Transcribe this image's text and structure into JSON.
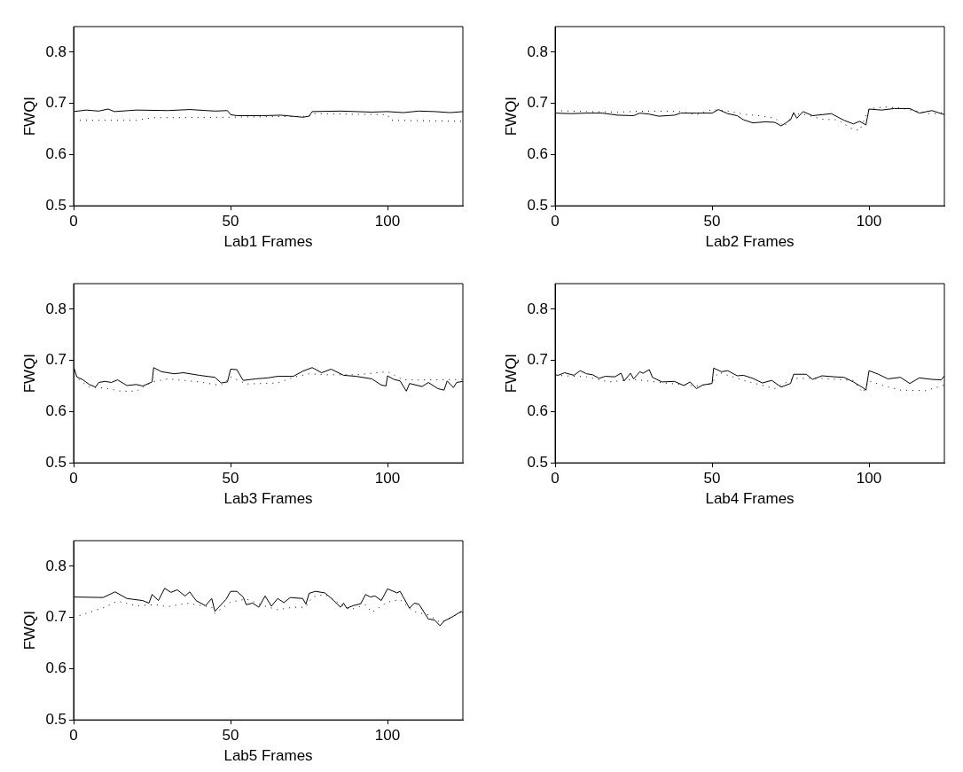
{
  "chart_data": [
    {
      "type": "line",
      "xlabel": "Lab1 Frames",
      "ylabel": "FWQI",
      "xlim": [
        0,
        124
      ],
      "xticks": [
        0,
        50,
        100
      ],
      "ylim": [
        0.5,
        0.85
      ],
      "yticks": [
        0.5,
        0.6,
        0.7,
        0.8
      ],
      "grid": false,
      "legend": false,
      "marker": "none",
      "series": [
        {
          "color": "#000000",
          "line_style": "solid",
          "x": [
            0,
            4,
            8,
            11,
            13,
            20,
            30,
            37,
            45,
            49,
            50,
            52,
            60,
            66,
            73,
            75,
            76,
            85,
            95,
            100,
            105,
            110,
            115,
            120,
            124
          ],
          "values": [
            0.684,
            0.687,
            0.685,
            0.689,
            0.684,
            0.687,
            0.686,
            0.688,
            0.685,
            0.686,
            0.678,
            0.676,
            0.676,
            0.677,
            0.673,
            0.675,
            0.684,
            0.685,
            0.683,
            0.684,
            0.682,
            0.685,
            0.684,
            0.682,
            0.684
          ]
        },
        {
          "color": "#000000",
          "line_style": "dotted",
          "x": [
            0,
            20,
            25,
            50,
            75,
            76,
            100,
            101,
            124
          ],
          "values": [
            0.667,
            0.667,
            0.672,
            0.673,
            0.675,
            0.68,
            0.678,
            0.667,
            0.665
          ]
        }
      ]
    },
    {
      "type": "line",
      "xlabel": "Lab2 Frames",
      "ylabel": "FWQI",
      "xlim": [
        0,
        124
      ],
      "xticks": [
        0,
        50,
        100
      ],
      "ylim": [
        0.5,
        0.85
      ],
      "yticks": [
        0.5,
        0.6,
        0.7,
        0.8
      ],
      "grid": false,
      "legend": false,
      "marker": "none",
      "series": [
        {
          "color": "#000000",
          "line_style": "solid",
          "x": [
            0,
            5,
            10,
            15,
            20,
            25,
            27,
            30,
            33,
            38,
            40,
            45,
            50,
            52,
            55,
            58,
            60,
            63,
            67,
            70,
            72,
            75,
            76,
            77,
            79,
            82,
            88,
            92,
            95,
            97,
            99,
            100,
            104,
            108,
            113,
            116,
            120,
            124
          ],
          "values": [
            0.681,
            0.68,
            0.681,
            0.681,
            0.677,
            0.676,
            0.681,
            0.679,
            0.675,
            0.677,
            0.681,
            0.681,
            0.681,
            0.688,
            0.68,
            0.676,
            0.668,
            0.662,
            0.664,
            0.663,
            0.656,
            0.668,
            0.682,
            0.671,
            0.684,
            0.676,
            0.68,
            0.667,
            0.66,
            0.665,
            0.658,
            0.689,
            0.687,
            0.69,
            0.69,
            0.681,
            0.686,
            0.678
          ]
        },
        {
          "color": "#000000",
          "line_style": "dotted",
          "x": [
            0,
            10,
            20,
            30,
            40,
            45,
            50,
            55,
            60,
            65,
            70,
            73,
            76,
            80,
            85,
            90,
            94,
            97,
            100,
            105,
            110,
            115,
            120,
            124
          ],
          "values": [
            0.686,
            0.684,
            0.683,
            0.685,
            0.684,
            0.678,
            0.688,
            0.685,
            0.679,
            0.676,
            0.671,
            0.655,
            0.68,
            0.678,
            0.669,
            0.668,
            0.652,
            0.647,
            0.69,
            0.693,
            0.691,
            0.685,
            0.679,
            0.683
          ]
        }
      ]
    },
    {
      "type": "line",
      "xlabel": "Lab3 Frames",
      "ylabel": "FWQI",
      "xlim": [
        0,
        124
      ],
      "xticks": [
        0,
        50,
        100
      ],
      "ylim": [
        0.5,
        0.85
      ],
      "yticks": [
        0.5,
        0.6,
        0.7,
        0.8
      ],
      "grid": false,
      "legend": false,
      "marker": "none",
      "series": [
        {
          "color": "#000000",
          "line_style": "solid",
          "x": [
            0,
            1,
            3,
            5,
            7,
            8,
            10,
            12,
            14,
            17,
            20,
            22,
            25,
            25.5,
            28,
            32,
            35,
            40,
            45,
            47,
            49,
            50,
            52,
            54,
            58,
            62,
            65,
            70,
            73,
            76,
            79,
            82,
            86,
            90,
            95,
            98,
            99.5,
            100,
            102,
            104,
            106,
            107,
            111,
            113,
            116,
            118,
            119,
            121,
            122,
            124
          ],
          "values": [
            0.688,
            0.668,
            0.662,
            0.653,
            0.648,
            0.657,
            0.659,
            0.657,
            0.662,
            0.651,
            0.653,
            0.65,
            0.658,
            0.686,
            0.678,
            0.674,
            0.676,
            0.671,
            0.667,
            0.656,
            0.658,
            0.683,
            0.682,
            0.661,
            0.664,
            0.666,
            0.669,
            0.669,
            0.679,
            0.686,
            0.676,
            0.683,
            0.671,
            0.669,
            0.664,
            0.652,
            0.65,
            0.67,
            0.663,
            0.66,
            0.64,
            0.655,
            0.649,
            0.657,
            0.645,
            0.642,
            0.66,
            0.647,
            0.657,
            0.659
          ]
        },
        {
          "color": "#000000",
          "line_style": "dotted",
          "x": [
            0,
            5,
            10,
            15,
            20,
            25,
            30,
            40,
            47,
            50,
            55,
            65,
            70,
            75,
            80,
            90,
            100,
            105,
            115,
            124
          ],
          "values": [
            0.67,
            0.648,
            0.646,
            0.64,
            0.64,
            0.658,
            0.664,
            0.658,
            0.651,
            0.668,
            0.654,
            0.656,
            0.667,
            0.674,
            0.672,
            0.672,
            0.678,
            0.662,
            0.662,
            0.663
          ]
        }
      ]
    },
    {
      "type": "line",
      "xlabel": "Lab4 Frames",
      "ylabel": "FWQI",
      "xlim": [
        0,
        124
      ],
      "xticks": [
        0,
        50,
        100
      ],
      "ylim": [
        0.5,
        0.85
      ],
      "yticks": [
        0.5,
        0.6,
        0.7,
        0.8
      ],
      "grid": false,
      "legend": false,
      "marker": "none",
      "series": [
        {
          "color": "#000000",
          "line_style": "solid",
          "x": [
            0,
            1,
            3,
            6,
            8,
            10,
            12,
            14,
            16,
            19,
            21,
            22,
            24,
            25,
            27,
            28,
            30,
            31,
            34,
            38,
            41,
            43,
            45,
            47,
            50,
            50.5,
            53,
            55,
            58,
            60,
            63,
            66,
            69,
            72,
            75,
            76,
            80,
            82,
            85,
            89,
            92,
            95,
            98,
            99,
            100,
            103,
            106,
            110,
            113,
            116,
            120,
            123,
            124
          ],
          "values": [
            0.672,
            0.671,
            0.676,
            0.671,
            0.68,
            0.674,
            0.672,
            0.665,
            0.669,
            0.668,
            0.675,
            0.66,
            0.675,
            0.664,
            0.678,
            0.675,
            0.682,
            0.667,
            0.658,
            0.659,
            0.651,
            0.658,
            0.645,
            0.652,
            0.655,
            0.685,
            0.678,
            0.68,
            0.67,
            0.671,
            0.665,
            0.656,
            0.661,
            0.648,
            0.655,
            0.673,
            0.673,
            0.663,
            0.67,
            0.668,
            0.667,
            0.658,
            0.647,
            0.642,
            0.68,
            0.673,
            0.664,
            0.667,
            0.655,
            0.666,
            0.663,
            0.662,
            0.67
          ]
        },
        {
          "color": "#000000",
          "line_style": "dotted",
          "x": [
            0,
            10,
            17,
            25,
            35,
            45,
            50,
            52,
            60,
            70,
            76,
            85,
            95,
            98,
            100,
            105,
            110,
            118,
            124
          ],
          "values": [
            0.671,
            0.668,
            0.658,
            0.663,
            0.656,
            0.65,
            0.655,
            0.677,
            0.661,
            0.645,
            0.665,
            0.665,
            0.661,
            0.637,
            0.66,
            0.65,
            0.642,
            0.641,
            0.652
          ]
        }
      ]
    },
    {
      "type": "line",
      "xlabel": "Lab5 Frames",
      "ylabel": "FWQI",
      "xlim": [
        0,
        124
      ],
      "xticks": [
        0,
        50,
        100
      ],
      "ylim": [
        0.5,
        0.85
      ],
      "yticks": [
        0.5,
        0.6,
        0.7,
        0.8
      ],
      "grid": false,
      "legend": false,
      "marker": "none",
      "series": [
        {
          "color": "#000000",
          "line_style": "solid",
          "x": [
            0,
            9.4,
            13.2,
            17,
            22,
            24,
            25,
            27,
            29,
            31,
            33,
            35.5,
            37,
            39,
            42,
            44,
            45,
            48.5,
            50,
            52,
            54,
            55,
            57,
            59,
            61,
            63,
            65,
            67,
            69,
            73,
            74,
            75,
            77,
            80,
            82,
            85,
            86,
            87,
            89,
            91.5,
            93,
            94.5,
            96,
            98,
            100,
            103,
            104,
            107,
            108.5,
            110,
            113,
            115,
            116.7,
            118,
            120.6,
            123.5,
            124
          ],
          "values": [
            0.74,
            0.739,
            0.75,
            0.737,
            0.733,
            0.728,
            0.745,
            0.733,
            0.757,
            0.749,
            0.754,
            0.742,
            0.75,
            0.733,
            0.723,
            0.737,
            0.712,
            0.735,
            0.751,
            0.751,
            0.74,
            0.725,
            0.728,
            0.72,
            0.742,
            0.722,
            0.737,
            0.729,
            0.739,
            0.737,
            0.726,
            0.747,
            0.751,
            0.748,
            0.738,
            0.72,
            0.728,
            0.718,
            0.723,
            0.727,
            0.745,
            0.74,
            0.742,
            0.733,
            0.756,
            0.748,
            0.751,
            0.718,
            0.728,
            0.726,
            0.697,
            0.695,
            0.684,
            0.693,
            0.701,
            0.712,
            0.709
          ]
        },
        {
          "color": "#000000",
          "line_style": "dotted",
          "x": [
            0,
            5,
            10,
            14,
            20,
            26,
            30,
            36,
            44,
            45,
            50,
            55,
            60,
            65,
            70,
            74,
            76,
            80,
            84,
            88,
            93,
            95,
            100,
            104,
            108,
            113,
            117,
            124
          ],
          "values": [
            0.7,
            0.71,
            0.72,
            0.732,
            0.723,
            0.725,
            0.721,
            0.728,
            0.72,
            0.708,
            0.73,
            0.736,
            0.724,
            0.715,
            0.72,
            0.72,
            0.74,
            0.745,
            0.73,
            0.715,
            0.725,
            0.71,
            0.73,
            0.735,
            0.712,
            0.705,
            0.69,
            0.712
          ]
        }
      ]
    }
  ]
}
